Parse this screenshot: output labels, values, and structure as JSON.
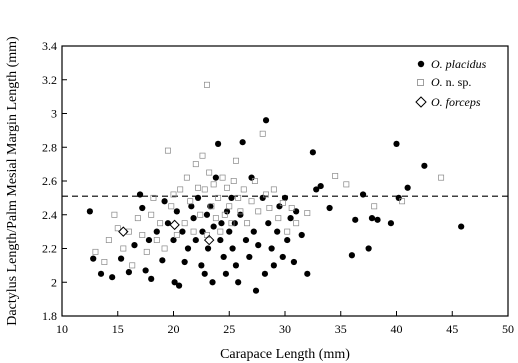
{
  "chart_data": {
    "type": "scatter",
    "title": "",
    "xlabel": "Carapace Length (mm)",
    "ylabel": "Dactylus Length/Palm Mesial Margin Length (mm)",
    "xlim": [
      10,
      50
    ],
    "ylim": [
      1.8,
      3.4
    ],
    "xticks": [
      "10",
      "15",
      "20",
      "25",
      "30",
      "35",
      "40",
      "45",
      "50"
    ],
    "yticks": [
      "1.8",
      "2",
      "2.2",
      "2.4",
      "2.6",
      "2.8",
      "3",
      "3.2",
      "3.4"
    ],
    "grid": false,
    "legend_position": "top-right",
    "reference_line": {
      "y": 2.51,
      "style": "dashed"
    },
    "series": [
      {
        "name": "O. placidus",
        "marker": "filled-circle",
        "color": "#000000",
        "points": [
          [
            12.5,
            2.42
          ],
          [
            12.8,
            2.14
          ],
          [
            13.5,
            2.05
          ],
          [
            14.5,
            2.03
          ],
          [
            15.3,
            2.14
          ],
          [
            16,
            2.06
          ],
          [
            16.5,
            2.22
          ],
          [
            17,
            2.52
          ],
          [
            17.2,
            2.44
          ],
          [
            17.5,
            2.07
          ],
          [
            17.8,
            2.25
          ],
          [
            18,
            2.02
          ],
          [
            18.5,
            2.3
          ],
          [
            19,
            2.13
          ],
          [
            19.2,
            2.48
          ],
          [
            19.5,
            2.35
          ],
          [
            20,
            2.25
          ],
          [
            20.1,
            2.0
          ],
          [
            20.3,
            2.42
          ],
          [
            20.5,
            1.98
          ],
          [
            20.8,
            2.3
          ],
          [
            21,
            2.12
          ],
          [
            21.3,
            2.2
          ],
          [
            21.6,
            2.45
          ],
          [
            21.8,
            2.38
          ],
          [
            22,
            2.25
          ],
          [
            22.2,
            2.5
          ],
          [
            22.5,
            2.1
          ],
          [
            22.6,
            2.3
          ],
          [
            22.8,
            2.05
          ],
          [
            23,
            2.4
          ],
          [
            23.1,
            2.2
          ],
          [
            23.3,
            2.45
          ],
          [
            23.5,
            2.0
          ],
          [
            23.6,
            2.33
          ],
          [
            23.8,
            2.62
          ],
          [
            24,
            2.82
          ],
          [
            24.2,
            2.25
          ],
          [
            24.3,
            2.35
          ],
          [
            24.5,
            2.15
          ],
          [
            24.7,
            2.05
          ],
          [
            24.8,
            2.42
          ],
          [
            25,
            2.3
          ],
          [
            25.2,
            2.5
          ],
          [
            25.3,
            2.2
          ],
          [
            25.5,
            2.35
          ],
          [
            25.6,
            2.1
          ],
          [
            25.8,
            2.0
          ],
          [
            26,
            2.4
          ],
          [
            26.2,
            2.83
          ],
          [
            26.5,
            2.25
          ],
          [
            26.8,
            2.15
          ],
          [
            27,
            2.62
          ],
          [
            27.2,
            2.3
          ],
          [
            27.4,
            1.95
          ],
          [
            27.6,
            2.22
          ],
          [
            28,
            2.5
          ],
          [
            28.2,
            2.05
          ],
          [
            28.3,
            2.96
          ],
          [
            28.5,
            2.35
          ],
          [
            28.8,
            2.2
          ],
          [
            29,
            2.1
          ],
          [
            29.3,
            2.3
          ],
          [
            29.5,
            2.45
          ],
          [
            29.8,
            2.15
          ],
          [
            30,
            2.5
          ],
          [
            30.2,
            2.25
          ],
          [
            30.5,
            2.38
          ],
          [
            30.8,
            2.12
          ],
          [
            31,
            2.42
          ],
          [
            31.5,
            2.28
          ],
          [
            32,
            2.05
          ],
          [
            32.5,
            2.77
          ],
          [
            32.8,
            2.55
          ],
          [
            33.2,
            2.57
          ],
          [
            34,
            2.44
          ],
          [
            36,
            2.16
          ],
          [
            36.3,
            2.37
          ],
          [
            37,
            2.52
          ],
          [
            37.5,
            2.2
          ],
          [
            37.8,
            2.38
          ],
          [
            38.3,
            2.37
          ],
          [
            39.5,
            2.35
          ],
          [
            40,
            2.82
          ],
          [
            40.2,
            2.5
          ],
          [
            41,
            2.56
          ],
          [
            42.5,
            2.69
          ],
          [
            45.8,
            2.33
          ]
        ]
      },
      {
        "name": "O. n. sp.",
        "marker": "open-square",
        "color": "#888888",
        "points": [
          [
            13,
            2.18
          ],
          [
            13.8,
            2.12
          ],
          [
            14.2,
            2.25
          ],
          [
            14.7,
            2.4
          ],
          [
            15,
            2.32
          ],
          [
            15.5,
            2.2
          ],
          [
            16,
            2.3
          ],
          [
            16.3,
            2.1
          ],
          [
            16.8,
            2.38
          ],
          [
            17.2,
            2.28
          ],
          [
            17.6,
            2.18
          ],
          [
            18,
            2.4
          ],
          [
            18.2,
            2.5
          ],
          [
            18.5,
            2.25
          ],
          [
            18.8,
            2.35
          ],
          [
            19.2,
            2.2
          ],
          [
            19.5,
            2.78
          ],
          [
            19.8,
            2.45
          ],
          [
            20,
            2.52
          ],
          [
            20.3,
            2.28
          ],
          [
            20.6,
            2.55
          ],
          [
            21,
            2.35
          ],
          [
            21.2,
            2.62
          ],
          [
            21.5,
            2.48
          ],
          [
            21.8,
            2.3
          ],
          [
            22,
            2.7
          ],
          [
            22.2,
            2.56
          ],
          [
            22.4,
            2.4
          ],
          [
            22.6,
            2.75
          ],
          [
            22.8,
            2.55
          ],
          [
            23,
            2.28
          ],
          [
            23,
            3.17
          ],
          [
            23.2,
            2.65
          ],
          [
            23.4,
            2.45
          ],
          [
            23.6,
            2.58
          ],
          [
            23.8,
            2.38
          ],
          [
            24,
            2.5
          ],
          [
            24.2,
            2.3
          ],
          [
            24.4,
            2.62
          ],
          [
            24.6,
            2.4
          ],
          [
            24.8,
            2.56
          ],
          [
            25,
            2.45
          ],
          [
            25.2,
            2.35
          ],
          [
            25.4,
            2.6
          ],
          [
            25.6,
            2.72
          ],
          [
            25.8,
            2.5
          ],
          [
            26,
            2.42
          ],
          [
            26.3,
            2.55
          ],
          [
            26.6,
            2.35
          ],
          [
            27,
            2.48
          ],
          [
            27.3,
            2.6
          ],
          [
            27.6,
            2.42
          ],
          [
            28,
            2.88
          ],
          [
            28.3,
            2.52
          ],
          [
            28.6,
            2.44
          ],
          [
            29,
            2.55
          ],
          [
            29.4,
            2.38
          ],
          [
            29.8,
            2.47
          ],
          [
            30.2,
            2.3
          ],
          [
            30.6,
            2.44
          ],
          [
            31,
            2.35
          ],
          [
            32,
            2.41
          ],
          [
            34.5,
            2.63
          ],
          [
            35.5,
            2.58
          ],
          [
            38,
            2.45
          ],
          [
            40.5,
            2.48
          ],
          [
            44,
            2.62
          ]
        ]
      },
      {
        "name": "O. forceps",
        "marker": "open-diamond",
        "color": "#000000",
        "points": [
          [
            15.5,
            2.3
          ],
          [
            20.1,
            2.34
          ],
          [
            23.2,
            2.25
          ]
        ]
      }
    ]
  },
  "legend": {
    "items": [
      {
        "label": "O. placidus",
        "style": "italic"
      },
      {
        "label": "O. n. sp.",
        "style": "mixed"
      },
      {
        "label": "O. forceps",
        "style": "italic"
      }
    ]
  }
}
